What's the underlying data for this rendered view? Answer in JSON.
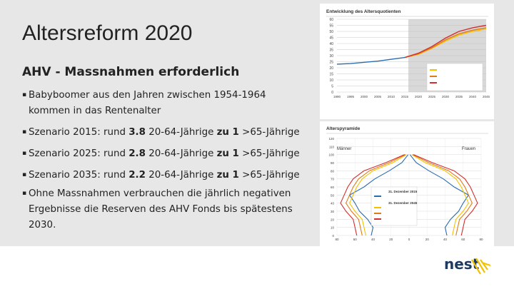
{
  "slide": {
    "title": "Altersreform 2020",
    "subtitle": "AHV - Massnahmen erforderlich",
    "bullets": [
      {
        "id": "b1",
        "line1": "Babyboomer aus den Jahren zwischen 1954-1964",
        "line2": "kommen in das Rentenalter"
      },
      {
        "id": "b2",
        "pre": "Szenario 2015: rund ",
        "ratio": "3.8",
        "mid": " 20-64-Jährige ",
        "zu": "zu 1",
        "post": " >65-Jährige"
      },
      {
        "id": "b3",
        "pre": "Szenario 2025: rund ",
        "ratio": "2.8",
        "mid": " 20-64-Jährige ",
        "zu": "zu 1",
        "post": " >65-Jährige"
      },
      {
        "id": "b4",
        "pre": "Szenario 2035: rund ",
        "ratio": "2.2",
        "mid": " 20-64-Jährige ",
        "zu": "zu 1",
        "post": " >65-Jährige"
      },
      {
        "id": "b5",
        "line1": "Ohne Massnahmen verbrauchen die jährlich negativen",
        "line2": "Ergebnisse die Reserven des AHV Fonds bis spätestens",
        "line3": "2030."
      }
    ]
  },
  "logo": {
    "text": "nest"
  },
  "colors": {
    "band": "#e7e7e7",
    "shade": "#d9d9d9",
    "hist": "#2b6cb0",
    "high": "#f2c200",
    "ref": "#e07b1a",
    "low": "#d32f2f"
  },
  "chart_data": [
    {
      "type": "line",
      "title": "Entwicklung des Altersquotienten",
      "x": [
        1990,
        1995,
        2000,
        2005,
        2010,
        2015,
        2020,
        2025,
        2030,
        2035,
        2040,
        2045
      ],
      "xticks": [
        "1990",
        "1995",
        "2000",
        "2005",
        "2010",
        "2015",
        "2020",
        "2025",
        "2030",
        "2035",
        "2040",
        "2045"
      ],
      "yticks": [
        "0",
        "5",
        "10",
        "15",
        "20",
        "25",
        "30",
        "35",
        "40",
        "45",
        "50",
        "55",
        "60"
      ],
      "ylim": [
        0,
        60
      ],
      "series": [
        {
          "name": "",
          "color": "#2b6cb0",
          "x": [
            1990,
            1995,
            2000,
            2005,
            2010,
            2015
          ],
          "values": [
            23,
            23.5,
            24.5,
            25.5,
            27,
            28.5
          ]
        },
        {
          "name": "",
          "color": "#f2c200",
          "x": [
            2015,
            2020,
            2025,
            2030,
            2035,
            2040,
            2045
          ],
          "values": [
            28.5,
            31,
            36,
            42,
            47,
            50,
            52
          ]
        },
        {
          "name": "",
          "color": "#e07b1a",
          "x": [
            2015,
            2020,
            2025,
            2030,
            2035,
            2040,
            2045
          ],
          "values": [
            28.5,
            31.5,
            36.5,
            43,
            48,
            51,
            53
          ]
        },
        {
          "name": "",
          "color": "#d32f2f",
          "x": [
            2015,
            2020,
            2025,
            2030,
            2035,
            2040,
            2045
          ],
          "values": [
            28.5,
            32,
            37.5,
            44.5,
            50,
            53,
            55
          ]
        }
      ]
    },
    {
      "type": "line",
      "title": "Alterspyramide",
      "left_label": "Männer",
      "right_label": "Frauen",
      "legend_dates": [
        "31. Dezember 2015",
        "31. Dezember 2045"
      ],
      "yticks": [
        "0",
        "10",
        "20",
        "30",
        "40",
        "50",
        "60",
        "70",
        "80",
        "90",
        "100",
        "110",
        "120"
      ],
      "xticks": [
        "80",
        "60",
        "40",
        "20",
        "0",
        "20",
        "40",
        "60",
        "80"
      ],
      "age": [
        0,
        10,
        20,
        30,
        40,
        50,
        60,
        70,
        80,
        90,
        100
      ],
      "series": [
        {
          "name": "",
          "color": "#2b6cb0",
          "values": [
            42,
            40,
            46,
            55,
            60,
            66,
            50,
            38,
            22,
            8,
            1
          ]
        },
        {
          "name": "",
          "color": "#f2c200",
          "values": [
            48,
            50,
            52,
            60,
            66,
            62,
            58,
            52,
            40,
            18,
            3
          ]
        },
        {
          "name": "",
          "color": "#e07b1a",
          "values": [
            52,
            54,
            56,
            64,
            70,
            66,
            62,
            56,
            44,
            22,
            4
          ]
        },
        {
          "name": "",
          "color": "#d32f2f",
          "values": [
            58,
            60,
            62,
            70,
            76,
            72,
            68,
            62,
            50,
            26,
            5
          ]
        }
      ]
    }
  ]
}
